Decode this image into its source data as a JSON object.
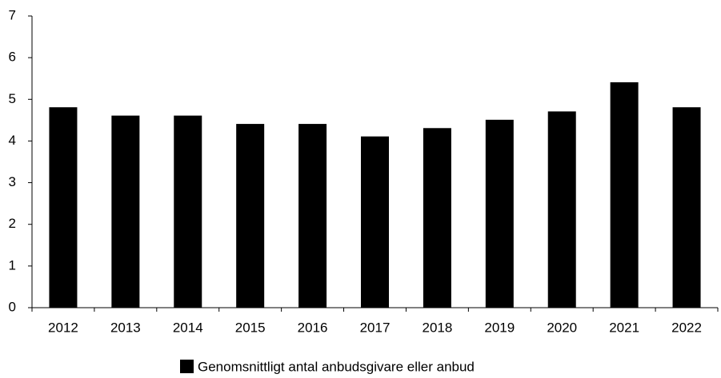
{
  "chart_data": {
    "type": "bar",
    "categories": [
      "2012",
      "2013",
      "2014",
      "2015",
      "2016",
      "2017",
      "2018",
      "2019",
      "2020",
      "2021",
      "2022"
    ],
    "series": [
      {
        "name": "Genomsnittligt antal anbudsgivare eller anbud",
        "color": "#000000",
        "values": [
          4.8,
          4.6,
          4.6,
          4.4,
          4.4,
          4.1,
          4.3,
          4.5,
          4.7,
          5.4,
          4.8
        ]
      }
    ],
    "ylim": [
      0,
      7
    ],
    "yticks": [
      0,
      1,
      2,
      3,
      4,
      5,
      6,
      7
    ],
    "grid": false,
    "legend": "bottom"
  }
}
